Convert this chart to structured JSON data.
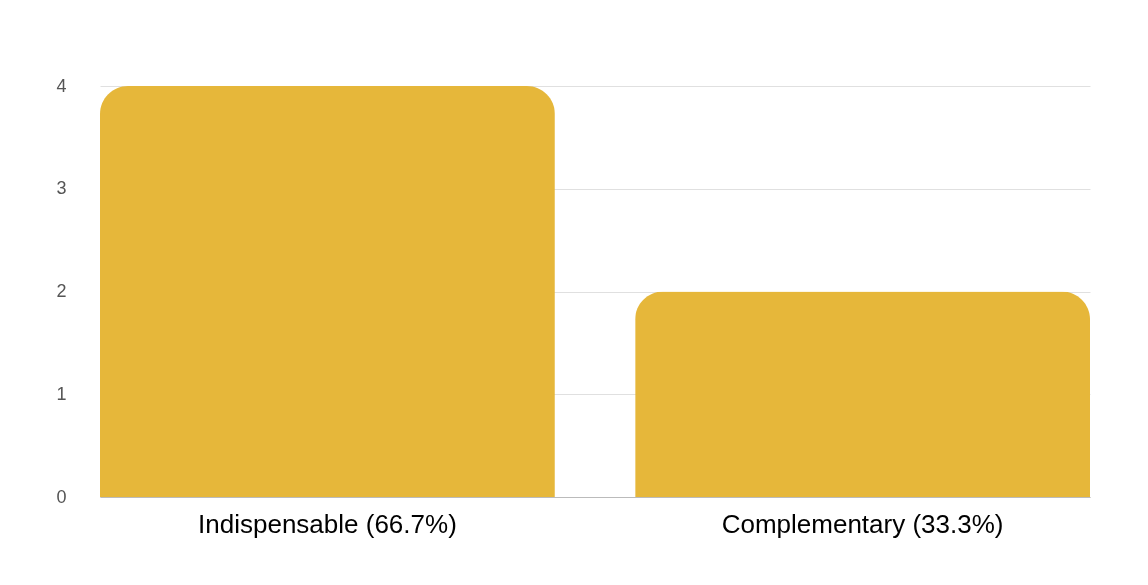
{
  "chart_data": {
    "type": "bar",
    "categories": [
      "Indispensable (66.7%)",
      "Complementary (33.3%)"
    ],
    "values": [
      4,
      2
    ],
    "color": "#e6b73a",
    "ylim": [
      0,
      4
    ],
    "yticks": [
      0,
      1,
      2,
      3,
      4
    ],
    "grid": "y"
  }
}
